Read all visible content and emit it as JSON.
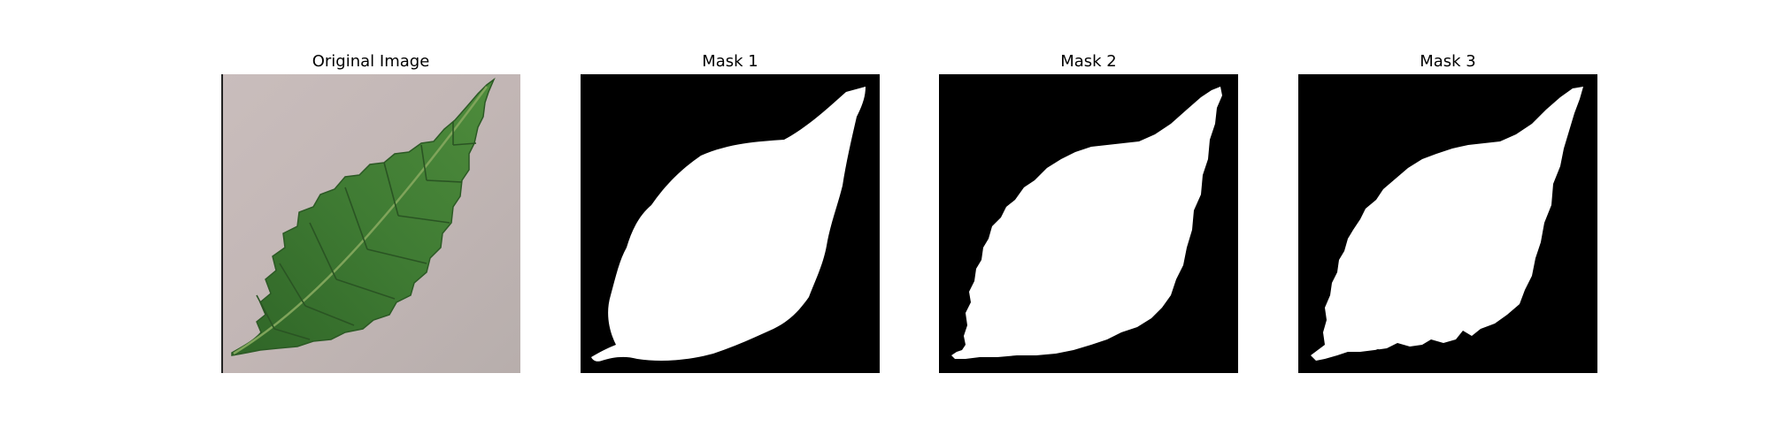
{
  "figure": {
    "panels": [
      {
        "title": "Original Image",
        "kind": "photo",
        "subject": "green leaf on grey surface"
      },
      {
        "title": "Mask 1",
        "kind": "binary-mask"
      },
      {
        "title": "Mask 2",
        "kind": "binary-mask"
      },
      {
        "title": "Mask 3",
        "kind": "binary-mask"
      }
    ],
    "colors": {
      "background": "#ffffff",
      "mask_background": "#000000",
      "mask_foreground": "#ffffff",
      "leaf_green": "#3f7b33",
      "surface_grey": "#c5b9b8"
    }
  }
}
